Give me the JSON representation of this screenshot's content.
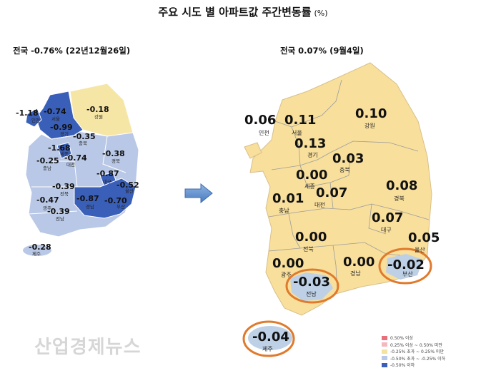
{
  "title": "주요 시도 별 아파트값 주간변동률",
  "unit": "(%)",
  "left_subtitle": "전국 -0.76% (22년12월26일)",
  "right_subtitle": "전국 0.07% (9월4일)",
  "left_map": {
    "regions": [
      {
        "name": "인천",
        "value": "-1.18"
      },
      {
        "name": "서울",
        "value": "-0.74"
      },
      {
        "name": "경기",
        "value": "-0.99"
      },
      {
        "name": "강원",
        "value": "-0.18"
      },
      {
        "name": "충북",
        "value": "-0.35"
      },
      {
        "name": "세종",
        "value": "-1.68"
      },
      {
        "name": "대전",
        "value": "-0.74"
      },
      {
        "name": "충남",
        "value": "-0.25"
      },
      {
        "name": "경북",
        "value": "-0.38"
      },
      {
        "name": "대구",
        "value": "-0.87"
      },
      {
        "name": "전북",
        "value": "-0.39"
      },
      {
        "name": "울산",
        "value": "-0.52"
      },
      {
        "name": "광주",
        "value": "-0.47"
      },
      {
        "name": "경남",
        "value": "-0.87"
      },
      {
        "name": "부산",
        "value": "-0.70"
      },
      {
        "name": "전남",
        "value": "-0.39"
      },
      {
        "name": "제주",
        "value": "-0.28"
      }
    ]
  },
  "right_map": {
    "regions": [
      {
        "name": "인천",
        "value": "0.06"
      },
      {
        "name": "서울",
        "value": "0.11"
      },
      {
        "name": "강원",
        "value": "0.10"
      },
      {
        "name": "경기",
        "value": "0.13"
      },
      {
        "name": "충북",
        "value": "0.03"
      },
      {
        "name": "세종",
        "value": "0.00"
      },
      {
        "name": "대전",
        "value": "0.07"
      },
      {
        "name": "경북",
        "value": "0.08"
      },
      {
        "name": "충남",
        "value": "0.01"
      },
      {
        "name": "대구",
        "value": "0.07"
      },
      {
        "name": "전북",
        "value": "0.00"
      },
      {
        "name": "울산",
        "value": "0.05"
      },
      {
        "name": "광주",
        "value": "0.00"
      },
      {
        "name": "경남",
        "value": "0.00"
      },
      {
        "name": "부산",
        "value": "-0.02"
      },
      {
        "name": "전남",
        "value": "-0.03"
      },
      {
        "name": "제주",
        "value": "-0.04"
      }
    ]
  },
  "legend": [
    {
      "label": "0.50% 이상",
      "color": "#e8707c"
    },
    {
      "label": "0.25% 이상 ~ 0.50% 미만",
      "color": "#f3b9c0"
    },
    {
      "label": "-0.25% 초과 ~ 0.25% 미만",
      "color": "#f4e2a0"
    },
    {
      "label": "-0.50% 초과 ~ -0.25% 이하",
      "color": "#b9c8e6"
    },
    {
      "label": "-0.50% 이하",
      "color": "#3a5fb8"
    }
  ],
  "watermark": "산업경제뉴스",
  "colors": {
    "left_blue_dark": "#3a5fb8",
    "left_blue_light": "#b9c8e6",
    "left_yellow": "#f6e6a6",
    "right_yellow": "#f8df9c",
    "highlight_blue": "#bdd0e6",
    "highlight_ring": "#e07a2c"
  },
  "icons": [
    "right-arrow-icon"
  ]
}
